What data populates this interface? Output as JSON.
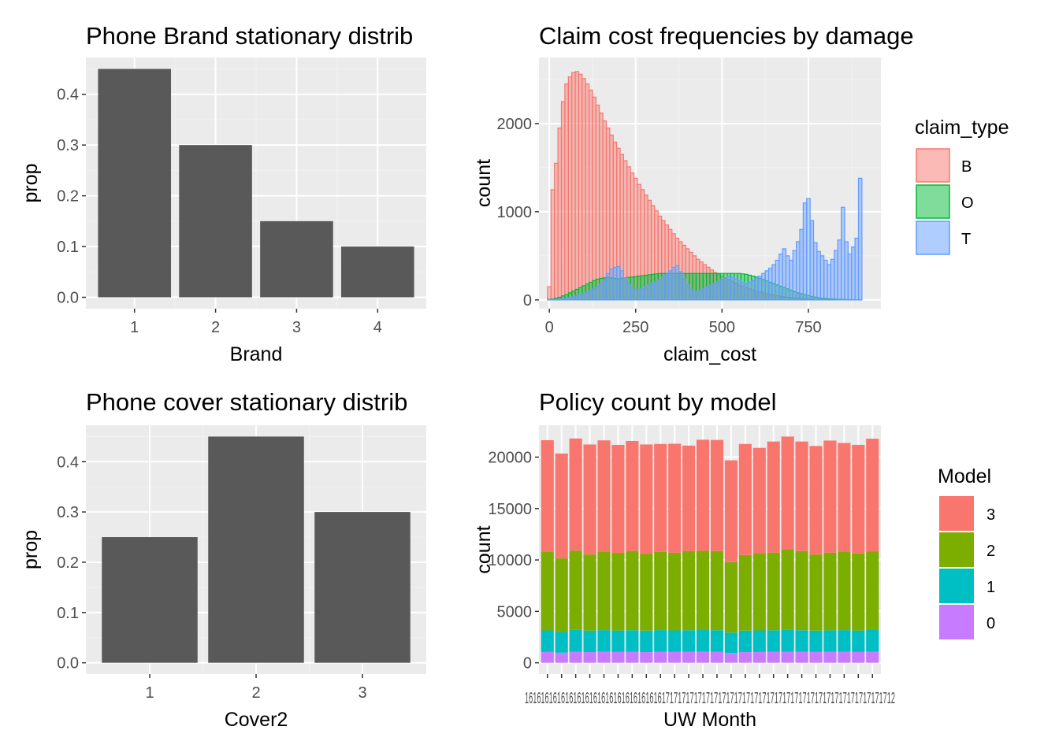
{
  "colors": {
    "panel_bg": "#EBEBEB",
    "grid_major": "#FFFFFF",
    "grid_minor": "#F2F2F2",
    "bar_gray": "#595959",
    "tick_text": "#4D4D4D",
    "tick_mark": "#333333",
    "claim_B": "#F8766D",
    "claim_O": "#00BA38",
    "claim_T": "#619CFF",
    "model_3": "#F8766D",
    "model_2": "#7CAE00",
    "model_1": "#00BFC4",
    "model_0": "#C77CFF"
  },
  "chart_data": [
    {
      "id": "brand",
      "type": "bar",
      "title": "Phone Brand stationary distrib",
      "xlabel": "Brand",
      "ylabel": "prop",
      "categories": [
        "1",
        "2",
        "3",
        "4"
      ],
      "values": [
        0.45,
        0.3,
        0.15,
        0.1
      ],
      "ylim": [
        0,
        0.45
      ],
      "yticks": [
        0.0,
        0.1,
        0.2,
        0.3,
        0.4
      ],
      "ytick_labels": [
        "0.0",
        "0.1",
        "0.2",
        "0.3",
        "0.4"
      ],
      "grid": true
    },
    {
      "id": "claim",
      "type": "area",
      "title": "Claim cost frequencies by damage",
      "xlabel": "claim_cost",
      "ylabel": "count",
      "xlim": [
        -30,
        960
      ],
      "ylim": [
        -100,
        2750
      ],
      "xticks": [
        0,
        250,
        500,
        750
      ],
      "yticks": [
        0,
        1000,
        2000
      ],
      "bin_width": 10,
      "legend": {
        "title": "claim_type",
        "placement": "right",
        "entries": [
          "B",
          "O",
          "T"
        ]
      },
      "series": [
        {
          "name": "B",
          "x": [
            0,
            10,
            20,
            30,
            40,
            50,
            60,
            70,
            80,
            90,
            100,
            110,
            120,
            130,
            140,
            150,
            160,
            170,
            180,
            190,
            200,
            210,
            220,
            230,
            240,
            250,
            260,
            270,
            280,
            290,
            300,
            310,
            320,
            330,
            340,
            350,
            360,
            370,
            380,
            390,
            400,
            410,
            420,
            430,
            440,
            450,
            460,
            470,
            480,
            490,
            500,
            510,
            520,
            530,
            540,
            550,
            560,
            570,
            580,
            590,
            600,
            610,
            620,
            630,
            640,
            650,
            660,
            670,
            680,
            690,
            700,
            710,
            720,
            730,
            740,
            750,
            760,
            770,
            780,
            790,
            800,
            810,
            820,
            830,
            840,
            850,
            860,
            870,
            880,
            890,
            900
          ],
          "values": [
            150,
            1250,
            1550,
            1950,
            2250,
            2450,
            2530,
            2580,
            2590,
            2560,
            2510,
            2450,
            2380,
            2300,
            2210,
            2120,
            2030,
            1950,
            1870,
            1790,
            1720,
            1650,
            1580,
            1510,
            1440,
            1380,
            1310,
            1250,
            1190,
            1130,
            1070,
            1010,
            950,
            900,
            850,
            800,
            750,
            700,
            660,
            620,
            580,
            540,
            500,
            460,
            430,
            400,
            370,
            340,
            310,
            290,
            270,
            250,
            230,
            210,
            190,
            170,
            155,
            140,
            125,
            110,
            100,
            90,
            80,
            70,
            62,
            55,
            48,
            42,
            36,
            30,
            26,
            22,
            18,
            15,
            12,
            10,
            8,
            6,
            5,
            4,
            3,
            2,
            2,
            1,
            1,
            1,
            0,
            0,
            0,
            0,
            0
          ]
        },
        {
          "name": "O",
          "x": [
            0,
            10,
            20,
            30,
            40,
            50,
            60,
            70,
            80,
            90,
            100,
            110,
            120,
            130,
            140,
            150,
            160,
            170,
            180,
            190,
            200,
            210,
            220,
            230,
            240,
            250,
            260,
            270,
            280,
            290,
            300,
            310,
            320,
            330,
            340,
            350,
            360,
            370,
            380,
            390,
            400,
            410,
            420,
            430,
            440,
            450,
            460,
            470,
            480,
            490,
            500,
            510,
            520,
            530,
            540,
            550,
            560,
            570,
            580,
            590,
            600,
            610,
            620,
            630,
            640,
            650,
            660,
            670,
            680,
            690,
            700,
            710,
            720,
            730,
            740,
            750,
            760,
            770,
            780,
            790,
            800,
            810,
            820,
            830,
            840,
            850,
            860,
            870,
            880,
            890,
            900
          ],
          "values": [
            5,
            10,
            20,
            30,
            45,
            60,
            80,
            100,
            120,
            140,
            160,
            180,
            200,
            220,
            235,
            245,
            250,
            255,
            250,
            245,
            240,
            245,
            250,
            255,
            260,
            265,
            270,
            275,
            280,
            285,
            290,
            295,
            300,
            300,
            300,
            300,
            300,
            300,
            300,
            300,
            300,
            300,
            300,
            300,
            300,
            300,
            300,
            300,
            300,
            300,
            300,
            300,
            300,
            300,
            300,
            300,
            295,
            290,
            280,
            270,
            260,
            245,
            230,
            215,
            200,
            185,
            170,
            155,
            140,
            125,
            110,
            95,
            80,
            70,
            60,
            50,
            40,
            32,
            25,
            20,
            15,
            12,
            10,
            8,
            6,
            5,
            4,
            3,
            2,
            1,
            1
          ]
        },
        {
          "name": "T",
          "x": [
            0,
            10,
            20,
            30,
            40,
            50,
            60,
            70,
            80,
            90,
            100,
            110,
            120,
            130,
            140,
            150,
            160,
            170,
            180,
            190,
            200,
            210,
            220,
            230,
            240,
            250,
            260,
            270,
            280,
            290,
            300,
            310,
            320,
            330,
            340,
            350,
            360,
            370,
            380,
            390,
            400,
            410,
            420,
            430,
            440,
            450,
            460,
            470,
            480,
            490,
            500,
            510,
            520,
            530,
            540,
            550,
            560,
            570,
            580,
            590,
            600,
            610,
            620,
            630,
            640,
            650,
            660,
            670,
            680,
            690,
            700,
            710,
            720,
            730,
            740,
            750,
            760,
            770,
            780,
            790,
            800,
            810,
            820,
            830,
            840,
            850,
            860,
            870,
            880,
            890,
            900
          ],
          "values": [
            2,
            4,
            6,
            10,
            14,
            20,
            28,
            36,
            46,
            58,
            72,
            88,
            105,
            125,
            150,
            180,
            230,
            300,
            350,
            370,
            380,
            330,
            250,
            180,
            140,
            120,
            120,
            130,
            150,
            170,
            190,
            210,
            230,
            260,
            290,
            330,
            370,
            390,
            320,
            240,
            170,
            120,
            100,
            100,
            110,
            130,
            150,
            170,
            190,
            210,
            230,
            250,
            270,
            260,
            240,
            220,
            200,
            190,
            200,
            220,
            250,
            270,
            300,
            330,
            360,
            400,
            450,
            520,
            580,
            500,
            450,
            560,
            660,
            800,
            1100,
            1150,
            900,
            650,
            550,
            500,
            450,
            400,
            460,
            560,
            680,
            1050,
            660,
            520,
            600,
            700,
            1380
          ]
        }
      ]
    },
    {
      "id": "cover",
      "type": "bar",
      "title": "Phone cover stationary distrib",
      "xlabel": "Cover2",
      "ylabel": "prop",
      "categories": [
        "1",
        "2",
        "3"
      ],
      "values": [
        0.25,
        0.45,
        0.3
      ],
      "ylim": [
        0,
        0.45
      ],
      "yticks": [
        0.0,
        0.1,
        0.2,
        0.3,
        0.4
      ],
      "ytick_labels": [
        "0.0",
        "0.1",
        "0.2",
        "0.3",
        "0.4"
      ],
      "grid": true
    },
    {
      "id": "policy",
      "type": "bar",
      "stacked": true,
      "title": "Policy count by model",
      "xlabel": "UW Month",
      "ylabel": "count",
      "ylim": [
        0,
        22000
      ],
      "yticks": [
        0,
        5000,
        10000,
        15000,
        20000
      ],
      "xtick_labels_text": "16161616161616161616161616161616161717171717171717171717171717171717171717171717171717171712",
      "legend": {
        "title": "Model",
        "placement": "right",
        "entries": [
          "3",
          "2",
          "1",
          "0"
        ]
      },
      "series": [
        {
          "name": "0",
          "values": [
            1050,
            980,
            1080,
            1040,
            1070,
            1050,
            1060,
            1040,
            1060,
            1050,
            1060,
            1070,
            1060,
            960,
            1040,
            1050,
            1060,
            1070,
            1060,
            1050,
            1060,
            1070,
            1050,
            1070
          ]
        },
        {
          "name": "1",
          "values": [
            2100,
            2020,
            2130,
            2090,
            2110,
            2090,
            2110,
            2090,
            2120,
            2100,
            2110,
            2120,
            2110,
            1980,
            2090,
            2100,
            2110,
            2130,
            2110,
            2080,
            2100,
            2110,
            2090,
            2120
          ]
        },
        {
          "name": "2",
          "values": [
            7650,
            7150,
            7700,
            7400,
            7650,
            7550,
            7700,
            7450,
            7600,
            7550,
            7700,
            7700,
            7700,
            6850,
            7350,
            7500,
            7550,
            7800,
            7700,
            7400,
            7550,
            7650,
            7500,
            7650
          ]
        },
        {
          "name": "3",
          "values": [
            10850,
            10200,
            10900,
            10700,
            10800,
            10500,
            10700,
            10650,
            10500,
            10600,
            10250,
            10800,
            10800,
            9900,
            10800,
            10250,
            10800,
            11000,
            10650,
            10550,
            10900,
            10550,
            10550,
            10950
          ]
        }
      ]
    }
  ]
}
